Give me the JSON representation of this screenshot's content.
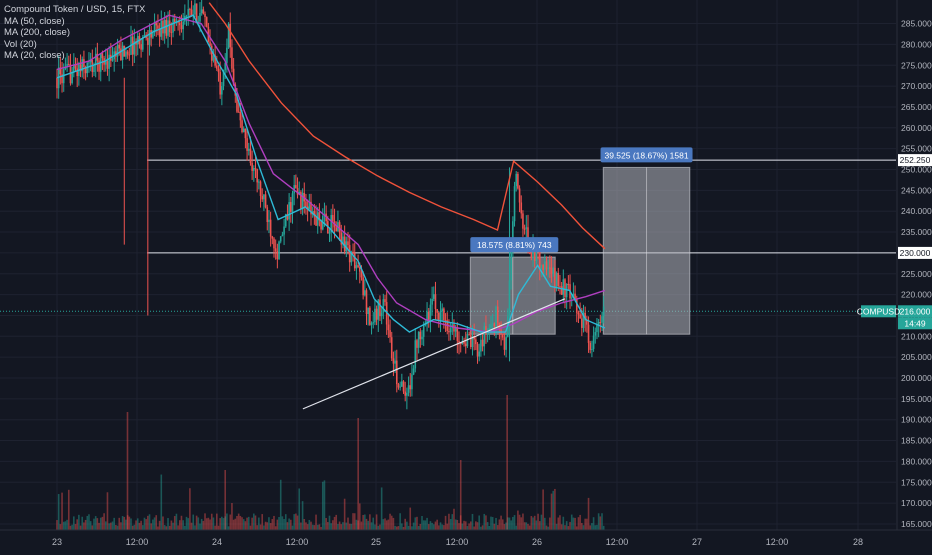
{
  "legend": {
    "symbol": "Compound Token / USD, 15, FTX",
    "ma50": "MA (50, close)",
    "ma200": "MA (200, close)",
    "vol": "Vol (20)",
    "ma20": "MA (20, close)"
  },
  "price_axis": {
    "ticks": [
      "285.000",
      "280.000",
      "275.000",
      "270.000",
      "265.000",
      "260.000",
      "255.000",
      "250.000",
      "245.000",
      "240.000",
      "235.000",
      "230.000",
      "225.000",
      "220.000",
      "215.000",
      "210.000",
      "205.000",
      "200.000",
      "195.000",
      "190.000",
      "185.000",
      "180.000",
      "175.000",
      "170.000",
      "165.000"
    ],
    "tag_252": "252.250",
    "tag_230": "230.000",
    "tag_current": "216.000",
    "countdown": "14:49",
    "symbol_tag": "COMPUSD"
  },
  "time_axis": {
    "ticks": [
      "23",
      "12:00",
      "24",
      "12:00",
      "25",
      "12:00",
      "26",
      "12:00",
      "27",
      "12:00",
      "28"
    ]
  },
  "measure_boxes": [
    {
      "label": "18.575 (8.81%) 743"
    },
    {
      "label": "39.525 (18.67%) 1581"
    }
  ],
  "colors": {
    "background": "#131722",
    "grid": "#1e2230",
    "up": "#26a69a",
    "down": "#ef5350",
    "ma20": "#2ebad6",
    "ma50": "#b03fc0",
    "ma200": "#f0523a",
    "current_line": "#26a69a",
    "box_label": "#4a78c0"
  },
  "chart_data": {
    "type": "candlestick",
    "y_range": [
      163,
      288
    ],
    "current_price": 216,
    "horizontal_levels": [
      252.25,
      230
    ],
    "trendline": [
      {
        "t": "24 12:00",
        "p": 192.5
      },
      {
        "t": "26 04:00",
        "p": 219
      }
    ],
    "measure_ranges": [
      {
        "from": 210.5,
        "to": 229,
        "change": 18.575,
        "percent": 8.81,
        "bars": 743
      },
      {
        "from": 210.5,
        "to": 250.5,
        "change": 39.525,
        "percent": 18.67,
        "bars": 1581
      }
    ],
    "close_path": [
      [
        0,
        272
      ],
      [
        0.35,
        277
      ],
      [
        0.65,
        284
      ],
      [
        0.9,
        288
      ],
      [
        1.02,
        270
      ],
      [
        1.07,
        283
      ],
      [
        1.13,
        263
      ],
      [
        1.25,
        247
      ],
      [
        1.32,
        238
      ],
      [
        1.38,
        230
      ],
      [
        1.48,
        245
      ],
      [
        1.62,
        238
      ],
      [
        1.75,
        236
      ],
      [
        1.88,
        226
      ],
      [
        1.96,
        213
      ],
      [
        2.04,
        219
      ],
      [
        2.1,
        203
      ],
      [
        2.18,
        194
      ],
      [
        2.25,
        210
      ],
      [
        2.35,
        218
      ],
      [
        2.48,
        211
      ],
      [
        2.62,
        207
      ],
      [
        2.74,
        215
      ],
      [
        2.8,
        206
      ],
      [
        2.86,
        248
      ],
      [
        2.94,
        232
      ],
      [
        3.05,
        226
      ],
      [
        3.18,
        221
      ],
      [
        3.28,
        214
      ],
      [
        3.34,
        208
      ],
      [
        3.42,
        216
      ]
    ]
  }
}
